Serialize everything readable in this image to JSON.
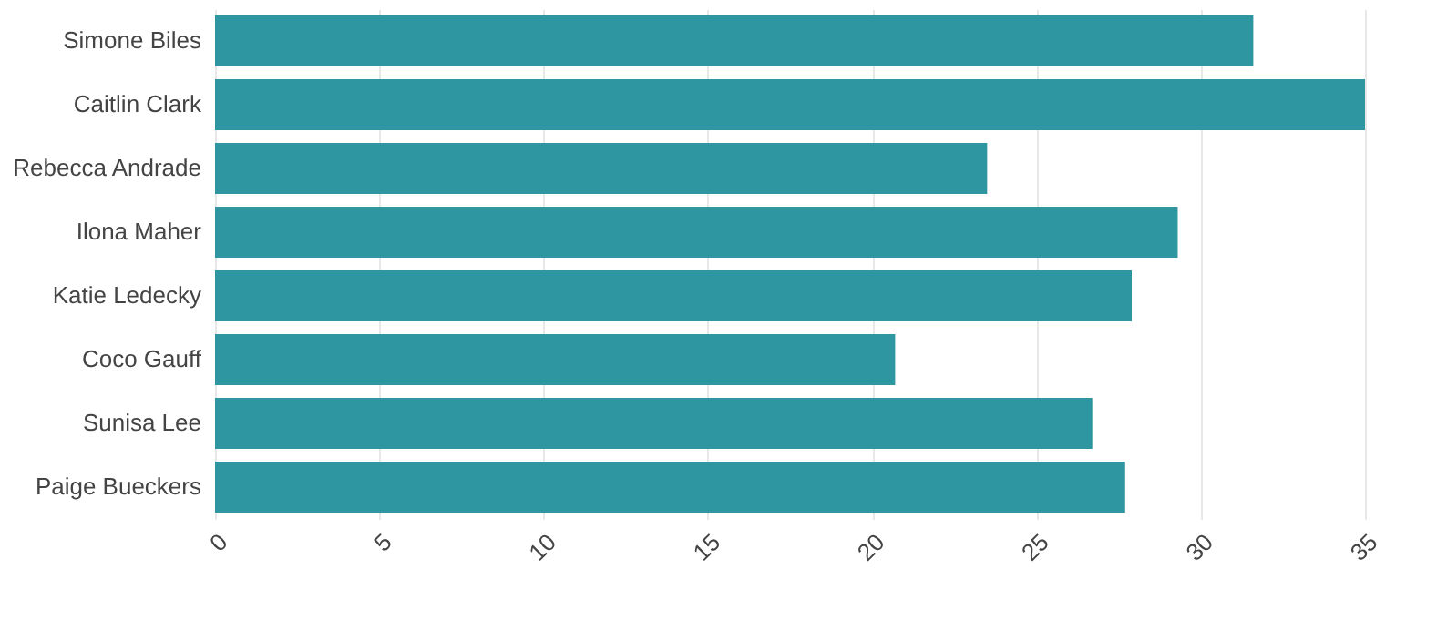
{
  "chart_data": {
    "type": "bar",
    "orientation": "horizontal",
    "categories": [
      "Simone Biles",
      "Caitlin Clark",
      "Rebecca Andrade",
      "Ilona Maher",
      "Katie Ledecky",
      "Coco Gauff",
      "Sunisa Lee",
      "Paige Bueckers"
    ],
    "values": [
      31.6,
      35,
      23.5,
      29.3,
      27.9,
      20.7,
      26.7,
      27.7
    ],
    "color": "#2e96a1",
    "xlim": [
      0,
      35
    ],
    "xticks": [
      0,
      5,
      10,
      15,
      20,
      25,
      30,
      35
    ],
    "grid": "x"
  }
}
